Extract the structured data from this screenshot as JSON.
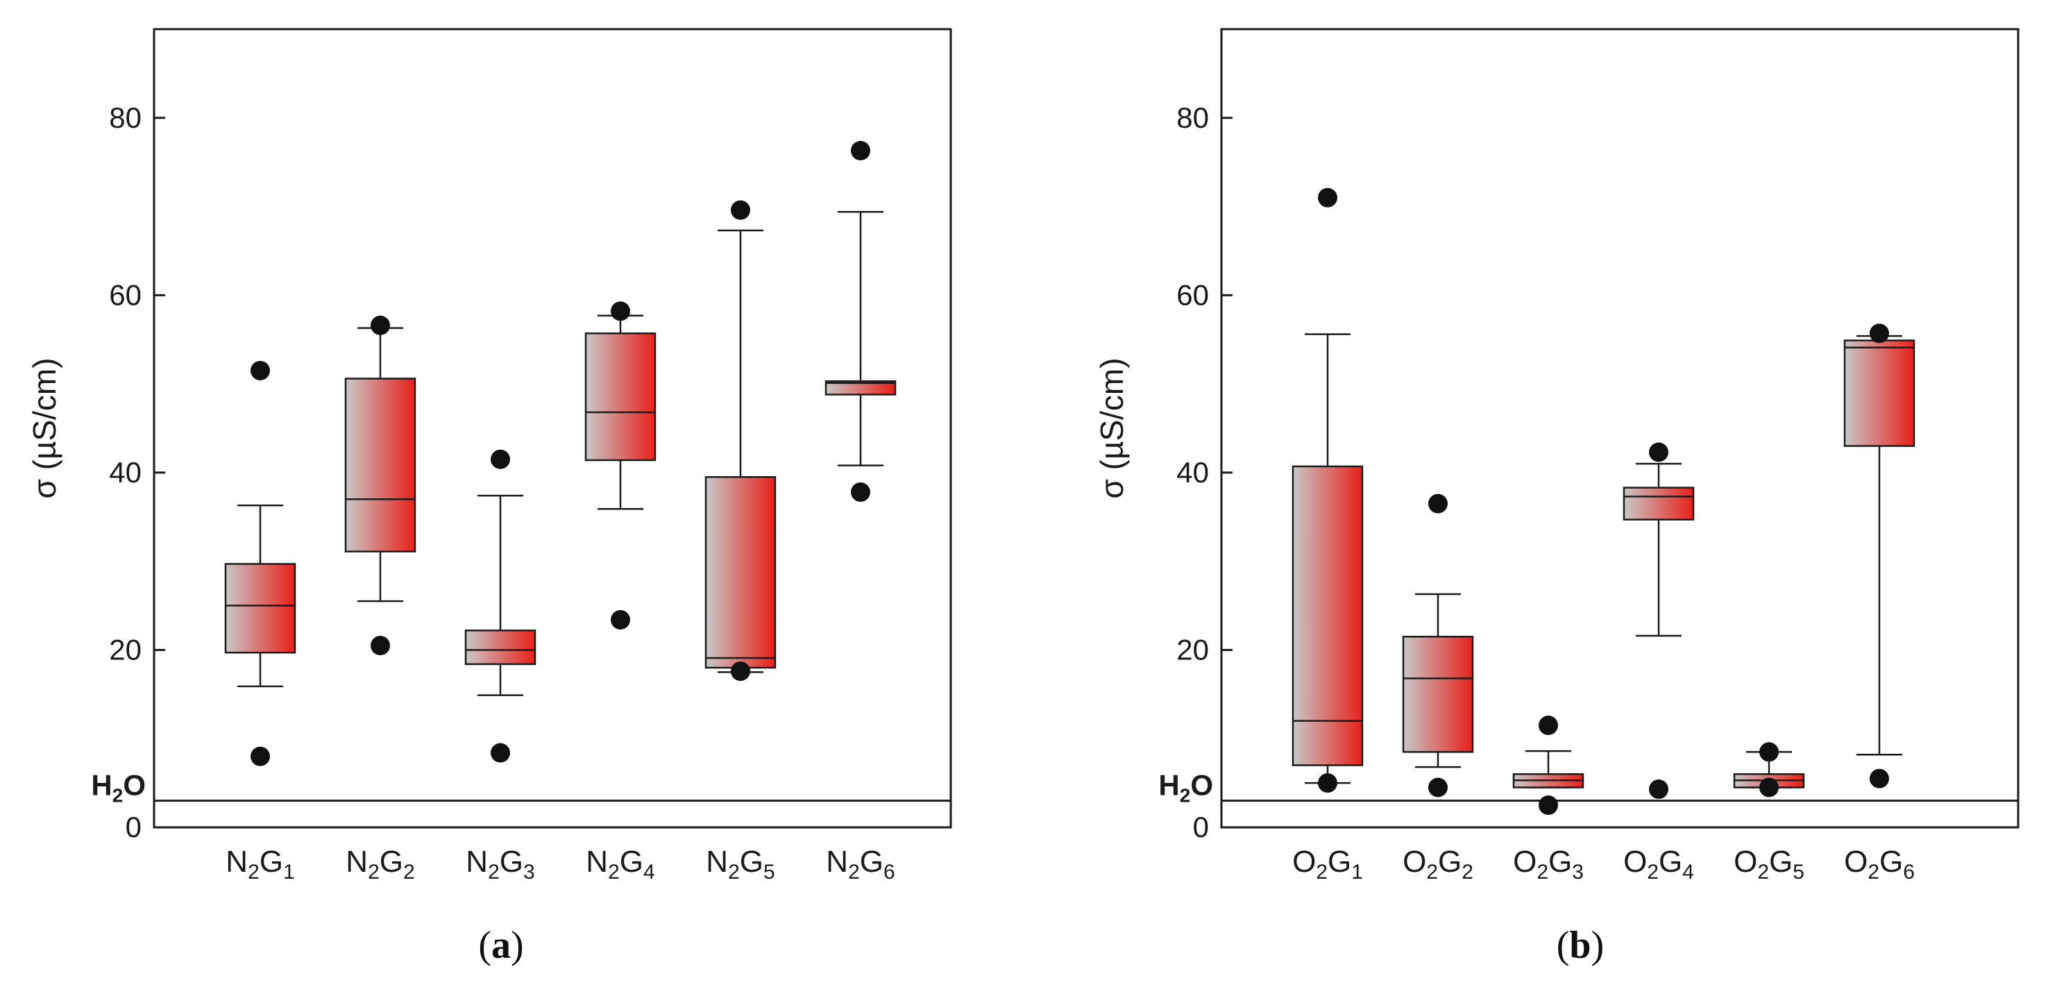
{
  "colors": {
    "box_gradient_start": "#c8c8c8",
    "box_gradient_end": "#e8201a",
    "stroke": "#1a1a1a",
    "outlier": "#111111"
  },
  "chart_data": [
    {
      "type": "boxplot",
      "panel": "a",
      "panel_label": "(a)",
      "panel_letter": "a",
      "ylabel": "σ (µS/cm)",
      "ylim": [
        0,
        90
      ],
      "yticks": [
        0,
        20,
        40,
        60,
        80
      ],
      "reference_line": {
        "name": "H2O",
        "value": 3,
        "label_base": "H",
        "label_sub": "2",
        "label_tail": "O"
      },
      "categories": [
        {
          "label": "N2G1",
          "parts": [
            "N",
            "2",
            "G",
            "1"
          ],
          "q1": 19.7,
          "median": 25.0,
          "q3": 29.7,
          "whisker_low": 15.9,
          "whisker_high": 36.3,
          "outliers": [
            51.5,
            8.0
          ]
        },
        {
          "label": "N2G2",
          "parts": [
            "N",
            "2",
            "G",
            "2"
          ],
          "q1": 31.1,
          "median": 37.0,
          "q3": 50.6,
          "whisker_low": 25.5,
          "whisker_high": 56.3,
          "outliers": [
            56.6,
            20.5
          ]
        },
        {
          "label": "N2G3",
          "parts": [
            "N",
            "2",
            "G",
            "3"
          ],
          "q1": 18.4,
          "median": 20.0,
          "q3": 22.2,
          "whisker_low": 14.9,
          "whisker_high": 37.4,
          "outliers": [
            41.5,
            8.4
          ]
        },
        {
          "label": "N2G4",
          "parts": [
            "N",
            "2",
            "G",
            "4"
          ],
          "q1": 41.4,
          "median": 46.8,
          "q3": 55.7,
          "whisker_low": 35.9,
          "whisker_high": 57.7,
          "outliers": [
            58.2,
            23.4
          ]
        },
        {
          "label": "N2G5",
          "parts": [
            "N",
            "2",
            "G",
            "5"
          ],
          "q1": 18.0,
          "median": 19.1,
          "q3": 39.5,
          "whisker_low": 17.5,
          "whisker_high": 67.3,
          "outliers": [
            69.6,
            17.6
          ]
        },
        {
          "label": "N2G6",
          "parts": [
            "N",
            "2",
            "G",
            "6"
          ],
          "q1": 48.8,
          "median": 50.1,
          "q3": 50.3,
          "whisker_low": 40.8,
          "whisker_high": 69.4,
          "outliers": [
            76.3,
            37.8
          ]
        }
      ]
    },
    {
      "type": "boxplot",
      "panel": "b",
      "panel_label": "(b)",
      "panel_letter": "b",
      "ylabel": "σ (µS/cm)",
      "ylim": [
        0,
        90
      ],
      "yticks": [
        0,
        20,
        40,
        60,
        80
      ],
      "reference_line": {
        "name": "H2O",
        "value": 3,
        "label_base": "H",
        "label_sub": "2",
        "label_tail": "O"
      },
      "categories": [
        {
          "label": "O2G1",
          "parts": [
            "O",
            "2",
            "G",
            "1"
          ],
          "q1": 7.0,
          "median": 12.0,
          "q3": 40.7,
          "whisker_low": 5.0,
          "whisker_high": 55.6,
          "outliers": [
            71.0,
            5.0
          ]
        },
        {
          "label": "O2G2",
          "parts": [
            "O",
            "2",
            "G",
            "2"
          ],
          "q1": 8.5,
          "median": 16.8,
          "q3": 21.5,
          "whisker_low": 6.8,
          "whisker_high": 26.3,
          "outliers": [
            36.5,
            4.5
          ]
        },
        {
          "label": "O2G3",
          "parts": [
            "O",
            "2",
            "G",
            "3"
          ],
          "q1": 4.5,
          "median": 5.3,
          "q3": 6.0,
          "whisker_low": 4.5,
          "whisker_high": 8.6,
          "outliers": [
            11.5,
            2.5
          ]
        },
        {
          "label": "O2G4",
          "parts": [
            "O",
            "2",
            "G",
            "4"
          ],
          "q1": 34.7,
          "median": 37.3,
          "q3": 38.3,
          "whisker_low": 21.6,
          "whisker_high": 41.0,
          "outliers": [
            42.3,
            4.3
          ]
        },
        {
          "label": "O2G5",
          "parts": [
            "O",
            "2",
            "G",
            "5"
          ],
          "q1": 4.5,
          "median": 5.3,
          "q3": 6.0,
          "whisker_low": 4.5,
          "whisker_high": 8.5,
          "outliers": [
            8.5,
            4.5
          ]
        },
        {
          "label": "O2G6",
          "parts": [
            "O",
            "2",
            "G",
            "6"
          ],
          "q1": 43.0,
          "median": 54.1,
          "q3": 54.9,
          "whisker_low": 8.2,
          "whisker_high": 55.4,
          "outliers": [
            55.7,
            5.5
          ]
        }
      ]
    }
  ]
}
